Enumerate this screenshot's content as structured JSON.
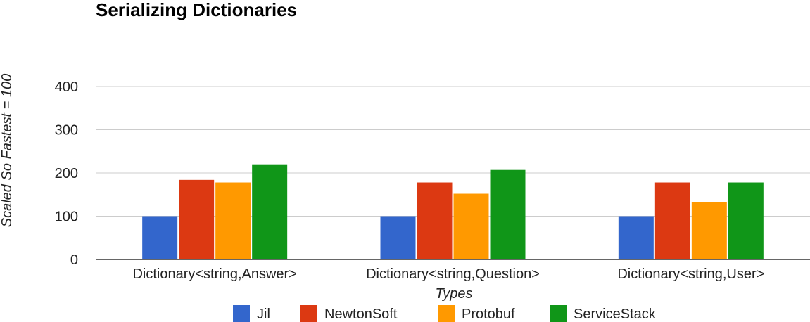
{
  "chart_data": {
    "type": "bar",
    "title": "Serializing Dictionaries",
    "xlabel": "Types",
    "ylabel": "Scaled So Fastest = 100",
    "categories": [
      "Dictionary<string,Answer>",
      "Dictionary<string,Question>",
      "Dictionary<string,User>"
    ],
    "series": [
      {
        "name": "Jil",
        "color": "#3366cc",
        "values": [
          100,
          100,
          100
        ]
      },
      {
        "name": "NewtonSoft",
        "color": "#dc3912",
        "values": [
          184,
          178,
          178
        ]
      },
      {
        "name": "Protobuf",
        "color": "#ff9900",
        "values": [
          178,
          152,
          132
        ]
      },
      {
        "name": "ServiceStack",
        "color": "#109618",
        "values": [
          220,
          207,
          178
        ]
      }
    ],
    "ylim": [
      0,
      400
    ],
    "yticks": [
      "0",
      "100",
      "200",
      "300",
      "400"
    ],
    "grid": true,
    "legend_position": "bottom"
  }
}
